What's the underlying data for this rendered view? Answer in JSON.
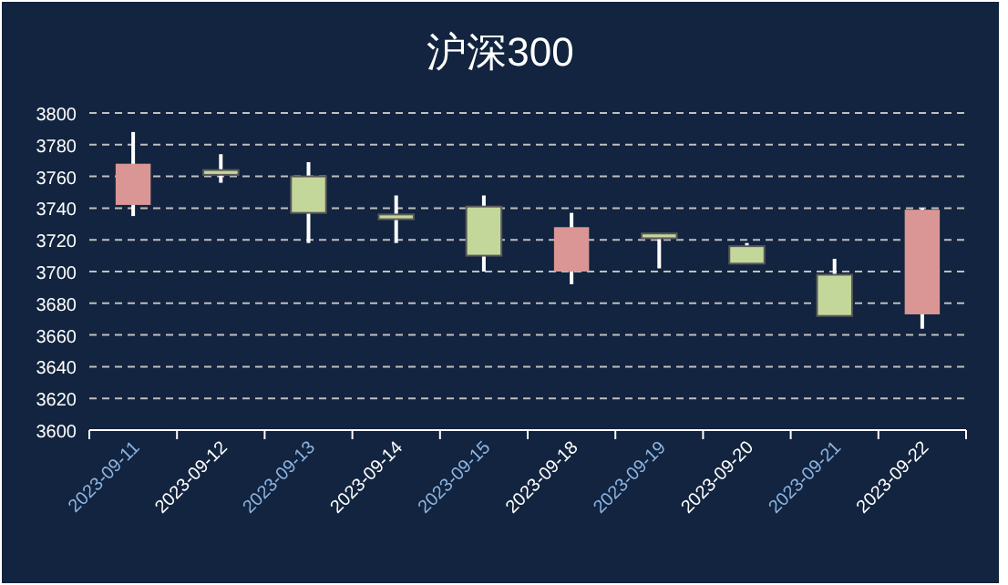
{
  "chart_data": {
    "type": "candlestick",
    "title": "沪深300",
    "x": [
      "2023-09-11",
      "2023-09-12",
      "2023-09-13",
      "2023-09-14",
      "2023-09-15",
      "2023-09-18",
      "2023-09-19",
      "2023-09-20",
      "2023-09-21",
      "2023-09-22"
    ],
    "ohlc": [
      [
        3742,
        3788,
        3735,
        3768
      ],
      [
        3764,
        3774,
        3756,
        3761
      ],
      [
        3760,
        3769,
        3718,
        3737
      ],
      [
        3736,
        3748,
        3718,
        3733
      ],
      [
        3741,
        3748,
        3700,
        3710
      ],
      [
        3700,
        3737,
        3692,
        3728
      ],
      [
        3724,
        3724,
        3702,
        3721
      ],
      [
        3716,
        3718,
        3705,
        3705
      ],
      [
        3698,
        3708,
        3672,
        3672
      ],
      [
        3673,
        3740,
        3664,
        3739
      ]
    ],
    "ylim": [
      3600,
      3800
    ],
    "yticks": [
      3600,
      3620,
      3640,
      3660,
      3680,
      3700,
      3720,
      3740,
      3760,
      3780,
      3800
    ],
    "grid": "y",
    "colors": [
      "#da9694",
      "#c4d79b",
      "#c4d79b",
      "#c4d79b",
      "#c4d79b",
      "#da9694",
      "#c4d79b",
      "#c4d79b",
      "#c4d79b",
      "#da9694"
    ]
  }
}
